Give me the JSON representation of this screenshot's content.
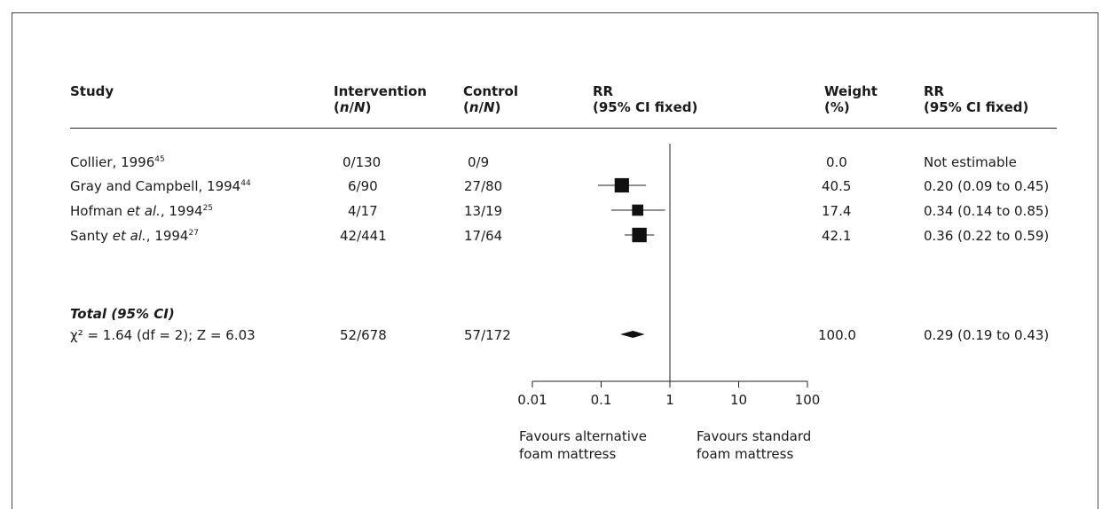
{
  "headers": {
    "study": "Study",
    "intervention": [
      "Intervention",
      "(n/N)"
    ],
    "control": [
      "Control",
      "(n/N)"
    ],
    "rr_plot": [
      "RR",
      "(95% CI fixed)"
    ],
    "weight": [
      "Weight",
      "(%)"
    ],
    "rr": [
      "RR",
      "(95% CI fixed)"
    ]
  },
  "studies": [
    {
      "name": "Collier, 1996",
      "ref": "45",
      "etal": false,
      "intervention": "0/130",
      "control": "0/9",
      "weight": "0.0",
      "rr_text": "Not estimable"
    },
    {
      "name": "Gray and Campbell, 1994",
      "ref": "44",
      "etal": false,
      "intervention": "6/90",
      "control": "27/80",
      "weight": "40.5",
      "rr_text": "0.20 (0.09 to 0.45)"
    },
    {
      "name_pre": "Hofman ",
      "name_etal": "et al.",
      "name_post": ", 1994",
      "ref": "25",
      "etal": true,
      "intervention": "4/17",
      "control": "13/19",
      "weight": "17.4",
      "rr_text": "0.34 (0.14 to 0.85)"
    },
    {
      "name_pre": "Santy ",
      "name_etal": "et al.",
      "name_post": ", 1994",
      "ref": "27",
      "etal": true,
      "intervention": "42/441",
      "control": "17/64",
      "weight": "42.1",
      "rr_text": "0.36 (0.22 to 0.59)"
    }
  ],
  "total": {
    "label": "Total (95% CI)",
    "stats": "χ² = 1.64 (df = 2); Z = 6.03",
    "intervention": "52/678",
    "control": "57/172",
    "weight": "100.0",
    "rr_text": "0.29 (0.19 to 0.43)"
  },
  "axis": {
    "ticks": [
      "0.01",
      "0.1",
      "1",
      "10",
      "100"
    ],
    "favours_left": [
      "Favours alternative",
      "foam mattress"
    ],
    "favours_right": [
      "Favours standard",
      "foam mattress"
    ]
  },
  "chart_data": {
    "type": "forest",
    "scale": "log",
    "xlim": [
      0.01,
      100
    ],
    "reference_line": 1,
    "studies": [
      {
        "name": "Collier, 1996",
        "rr": null,
        "ci": null,
        "weight": 0.0
      },
      {
        "name": "Gray and Campbell, 1994",
        "rr": 0.2,
        "ci": [
          0.09,
          0.45
        ],
        "weight": 40.5
      },
      {
        "name": "Hofman et al., 1994",
        "rr": 0.34,
        "ci": [
          0.14,
          0.85
        ],
        "weight": 17.4
      },
      {
        "name": "Santy et al., 1994",
        "rr": 0.36,
        "ci": [
          0.22,
          0.59
        ],
        "weight": 42.1
      }
    ],
    "total": {
      "rr": 0.29,
      "ci": [
        0.19,
        0.43
      ],
      "weight": 100.0
    }
  }
}
